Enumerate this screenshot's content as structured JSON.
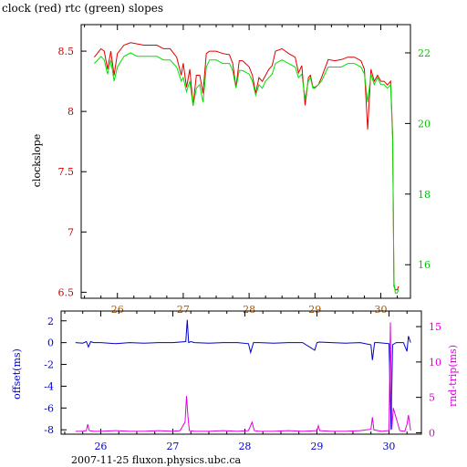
{
  "header": {
    "title": "clock (red) rtc (green) slopes"
  },
  "footer": {
    "label": "2007-11-25 fluxon.physics.ubc.ca"
  },
  "colors": {
    "clock": "#e00000",
    "rtc": "#00e000",
    "offset": "#0000cc",
    "roundtrip": "#e000e0",
    "axis": "#000000",
    "left_ticks_top": "#cc0000",
    "right_ticks_top": "#00c000"
  },
  "chart_data": [
    {
      "type": "line",
      "title": "clock (red) rtc (green) slopes",
      "xlim": [
        25.45,
        30.45
      ],
      "x_ticks": [
        26,
        27,
        28,
        29,
        30
      ],
      "x_tick_labels": [
        "26",
        "27",
        "28",
        "29",
        "30"
      ],
      "ylabel_left": "clockslope",
      "ylim_left": [
        6.45,
        8.72
      ],
      "y_ticks_left": [
        6.5,
        7,
        7.5,
        8,
        8.5
      ],
      "y_tick_labels_left": [
        "6.5",
        "7",
        "7.5",
        "8",
        "8.5"
      ],
      "ylim_right": [
        15.05,
        22.8
      ],
      "y_ticks_right": [
        16,
        18,
        20,
        22
      ],
      "y_tick_labels_right": [
        "16",
        "18",
        "20",
        "22"
      ],
      "series": [
        {
          "name": "clock",
          "axis": "left",
          "x": [
            25.65,
            25.75,
            25.8,
            25.85,
            25.9,
            25.95,
            26.0,
            26.1,
            26.2,
            26.3,
            26.4,
            26.5,
            26.6,
            26.7,
            26.8,
            26.9,
            26.97,
            27.0,
            27.05,
            27.1,
            27.15,
            27.2,
            27.25,
            27.3,
            27.35,
            27.4,
            27.5,
            27.6,
            27.7,
            27.75,
            27.8,
            27.85,
            27.9,
            28.0,
            28.05,
            28.1,
            28.15,
            28.2,
            28.25,
            28.3,
            28.35,
            28.4,
            28.5,
            28.6,
            28.7,
            28.75,
            28.8,
            28.85,
            28.9,
            28.93,
            28.97,
            29.0,
            29.05,
            29.1,
            29.2,
            29.3,
            29.4,
            29.5,
            29.6,
            29.7,
            29.75,
            29.8,
            29.85,
            29.9,
            29.95,
            30.0,
            30.05,
            30.1,
            30.15,
            30.18,
            30.2,
            30.22,
            30.25,
            30.27
          ],
          "values": [
            8.45,
            8.52,
            8.5,
            8.35,
            8.5,
            8.3,
            8.48,
            8.55,
            8.57,
            8.56,
            8.55,
            8.55,
            8.55,
            8.52,
            8.52,
            8.45,
            8.3,
            8.4,
            8.2,
            8.35,
            8.05,
            8.3,
            8.3,
            8.15,
            8.48,
            8.5,
            8.5,
            8.48,
            8.47,
            8.4,
            8.2,
            8.42,
            8.42,
            8.37,
            8.3,
            8.15,
            8.28,
            8.25,
            8.3,
            8.35,
            8.38,
            8.5,
            8.52,
            8.48,
            8.45,
            8.32,
            8.38,
            8.05,
            8.28,
            8.3,
            8.2,
            8.2,
            8.22,
            8.28,
            8.43,
            8.42,
            8.43,
            8.45,
            8.45,
            8.42,
            8.35,
            7.85,
            8.35,
            8.25,
            8.3,
            8.25,
            8.25,
            8.22,
            8.25,
            7.8,
            6.55,
            6.52,
            6.52,
            6.55
          ]
        },
        {
          "name": "rtc",
          "axis": "right",
          "x": [
            25.65,
            25.75,
            25.8,
            25.85,
            25.9,
            25.95,
            26.0,
            26.1,
            26.2,
            26.3,
            26.4,
            26.5,
            26.6,
            26.7,
            26.8,
            26.9,
            26.97,
            27.0,
            27.05,
            27.1,
            27.15,
            27.2,
            27.25,
            27.3,
            27.35,
            27.4,
            27.5,
            27.6,
            27.7,
            27.75,
            27.8,
            27.85,
            27.9,
            28.0,
            28.05,
            28.1,
            28.15,
            28.2,
            28.25,
            28.3,
            28.35,
            28.4,
            28.5,
            28.6,
            28.7,
            28.75,
            28.8,
            28.85,
            28.9,
            28.93,
            28.97,
            29.0,
            29.05,
            29.1,
            29.2,
            29.3,
            29.4,
            29.5,
            29.6,
            29.7,
            29.75,
            29.8,
            29.85,
            29.9,
            29.95,
            30.0,
            30.05,
            30.1,
            30.15,
            30.18,
            30.2,
            30.22,
            30.25,
            30.27
          ],
          "values": [
            21.7,
            21.9,
            21.8,
            21.4,
            21.8,
            21.2,
            21.6,
            21.9,
            22.0,
            21.9,
            21.9,
            21.9,
            21.9,
            21.8,
            21.8,
            21.6,
            21.2,
            21.3,
            20.9,
            21.2,
            20.5,
            21.0,
            21.1,
            20.6,
            21.6,
            21.8,
            21.8,
            21.7,
            21.7,
            21.5,
            21.0,
            21.5,
            21.5,
            21.4,
            21.2,
            20.8,
            21.1,
            21.0,
            21.2,
            21.3,
            21.4,
            21.7,
            21.8,
            21.7,
            21.6,
            21.3,
            21.4,
            20.7,
            21.2,
            21.3,
            21.0,
            21.0,
            21.1,
            21.2,
            21.6,
            21.6,
            21.6,
            21.7,
            21.7,
            21.6,
            21.4,
            20.6,
            21.4,
            21.1,
            21.3,
            21.1,
            21.1,
            21.0,
            21.1,
            19.5,
            15.5,
            15.2,
            15.2,
            15.3
          ]
        }
      ]
    },
    {
      "type": "line",
      "xlim": [
        25.45,
        30.45
      ],
      "x_ticks": [
        26,
        27,
        28,
        29,
        30
      ],
      "x_tick_labels": [
        "26",
        "27",
        "28",
        "29",
        "30"
      ],
      "ylabel_left": "offset(ms)",
      "ylim_left": [
        -8.4,
        2.9
      ],
      "y_ticks_left": [
        -8,
        -6,
        -4,
        -2,
        0,
        2
      ],
      "y_tick_labels_left": [
        "-8",
        "-6",
        "-4",
        "-2",
        "0",
        "2"
      ],
      "ylabel_right": "rnd-trip(ms)",
      "ylim_right": [
        -0.2,
        17.2
      ],
      "y_ticks_right": [
        0,
        5,
        10,
        15
      ],
      "y_tick_labels_right": [
        "0",
        "5",
        "10",
        "15"
      ],
      "series": [
        {
          "name": "offset(ms)",
          "axis": "left",
          "x": [
            25.65,
            25.75,
            25.8,
            25.83,
            25.86,
            25.9,
            26.0,
            26.2,
            26.4,
            26.6,
            26.8,
            27.0,
            27.18,
            27.2,
            27.22,
            27.25,
            27.3,
            27.5,
            27.7,
            27.9,
            28.05,
            28.08,
            28.12,
            28.2,
            28.4,
            28.6,
            28.8,
            28.97,
            29.0,
            29.03,
            29.2,
            29.4,
            29.6,
            29.75,
            29.77,
            29.8,
            29.85,
            30.0,
            30.03,
            30.05,
            30.1,
            30.2,
            30.25,
            30.27,
            30.3
          ],
          "values": [
            0,
            -0.05,
            0.1,
            -0.4,
            0.1,
            0,
            0,
            -0.1,
            0,
            -0.05,
            0,
            0,
            0.1,
            2.1,
            0,
            0.1,
            0,
            -0.05,
            0,
            0,
            -0.1,
            -0.9,
            0,
            0,
            -0.05,
            0,
            0,
            -0.7,
            0,
            0.05,
            0,
            -0.05,
            0,
            -0.2,
            -1.6,
            0,
            0,
            -0.1,
            -8.0,
            -0.2,
            0,
            0,
            -0.8,
            0.6,
            0
          ]
        },
        {
          "name": "rnd-trip(ms)",
          "axis": "right",
          "x": [
            25.65,
            25.75,
            25.8,
            25.82,
            25.84,
            25.9,
            26.0,
            26.2,
            26.4,
            26.6,
            26.8,
            27.0,
            27.1,
            27.17,
            27.19,
            27.21,
            27.23,
            27.3,
            27.5,
            27.7,
            27.9,
            28.05,
            28.1,
            28.13,
            28.2,
            28.4,
            28.6,
            28.8,
            29.0,
            29.02,
            29.04,
            29.2,
            29.4,
            29.6,
            29.75,
            29.77,
            29.79,
            29.9,
            30.0,
            30.02,
            30.04,
            30.06,
            30.15,
            30.22,
            30.25,
            30.27,
            30.3
          ],
          "values": [
            0.2,
            0.2,
            0.3,
            1.2,
            0.3,
            0.2,
            0.2,
            0.3,
            0.2,
            0.2,
            0.3,
            0.2,
            0.3,
            1.5,
            5.2,
            2.4,
            0.3,
            0.2,
            0.2,
            0.3,
            0.2,
            0.3,
            1.5,
            0.3,
            0.2,
            0.2,
            0.3,
            0.2,
            0.3,
            1.0,
            0.3,
            0.2,
            0.2,
            0.3,
            0.5,
            2.2,
            0.4,
            0.2,
            0.3,
            15.6,
            0.5,
            3.5,
            0.3,
            0.2,
            1.2,
            2.5,
            0.3
          ]
        }
      ]
    }
  ]
}
